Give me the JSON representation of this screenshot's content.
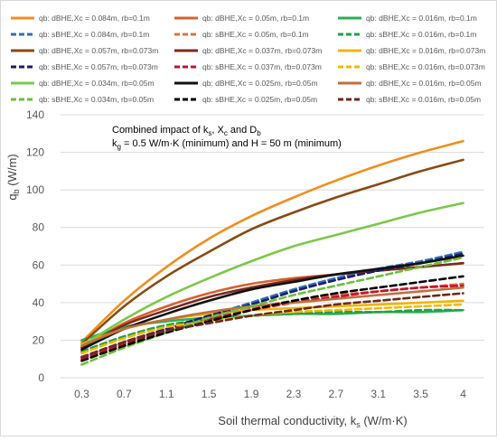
{
  "chart_data": {
    "type": "line",
    "title": "",
    "xlabel": "Soil thermal conductivity, k",
    "xlabel_sub": "s",
    "xlabel_unit": " (W/m·K)",
    "ylabel": "q",
    "ylabel_sub": "b",
    "ylabel_unit": " (W/m)",
    "categories": [
      "0.3",
      "0.7",
      "1.1",
      "1.5",
      "1.9",
      "2.3",
      "2.7",
      "3.1",
      "3.5",
      "4"
    ],
    "ylim": [
      0,
      140
    ],
    "yticks": [
      "0",
      "20",
      "40",
      "60",
      "80",
      "100",
      "120",
      "140"
    ],
    "grid": true,
    "legend_position": "top",
    "annotation": {
      "line1": "Combined impact of k",
      "line1_sub": "s",
      "line1_b": ", X",
      "line1_b_sub": "c",
      "line1_c": " and D",
      "line1_c_sub": "b",
      "line2": "k",
      "line2_sub": "g",
      "line2_b": " = 0.5 W/m·K (minimum) and H = 50 m (minimum)"
    },
    "series": [
      {
        "name": "qb: dBHE,Xc = 0.084m, rb=0.1m",
        "color": "#F28E1D",
        "dash": false,
        "values": [
          19,
          41,
          59,
          74,
          86,
          96,
          105,
          113,
          120,
          126
        ]
      },
      {
        "name": "qb: dBHE,Xc = 0.05m, rb=0.1m",
        "color": "#D8602D",
        "dash": false,
        "values": [
          16,
          29,
          38,
          45,
          50,
          53,
          55,
          57,
          59,
          61
        ]
      },
      {
        "name": "qb: dBHE,Xc = 0.016m, rb=0.1m",
        "color": "#2EAE56",
        "dash": false,
        "values": [
          20,
          27,
          30,
          32,
          33,
          34,
          34,
          35,
          35,
          36
        ]
      },
      {
        "name": "qb: sBHE,Xc = 0.084m, rb=0.1m",
        "color": "#2F6FB8",
        "dash": true,
        "values": [
          11,
          19,
          26,
          33,
          40,
          47,
          53,
          58,
          62,
          67
        ]
      },
      {
        "name": "qb: sBHE,Xc = 0.05m, rb=0.1m",
        "color": "#E07040",
        "dash": true,
        "values": [
          10,
          19,
          26,
          32,
          37,
          41,
          44,
          46,
          48,
          50
        ]
      },
      {
        "name": "qb: sBHE,Xc = 0.016m, rb=0.1m",
        "color": "#1FA04A",
        "dash": true,
        "values": [
          14,
          22,
          28,
          31,
          33,
          34,
          35,
          35,
          36,
          36
        ]
      },
      {
        "name": "qb: dBHE,Xc = 0.057m, rb=0.073m",
        "color": "#8A4A12",
        "dash": false,
        "values": [
          18,
          38,
          54,
          67,
          79,
          88,
          96,
          103,
          110,
          116
        ]
      },
      {
        "name": "qb: dBHE,Xc = 0.037m, rb=0.073m",
        "color": "#7A2A1E",
        "dash": false,
        "values": [
          16,
          28,
          36,
          43,
          48,
          52,
          55,
          57,
          59,
          61
        ]
      },
      {
        "name": "qb: dBHE,Xc = 0.016m, rb=0.073m",
        "color": "#F2B400",
        "dash": false,
        "values": [
          18,
          26,
          31,
          34,
          36,
          37,
          38,
          39,
          40,
          41
        ]
      },
      {
        "name": "qb: sBHE,Xc = 0.057m, rb=0.073m",
        "color": "#1C1C6E",
        "dash": true,
        "values": [
          11,
          19,
          26,
          33,
          39,
          46,
          52,
          57,
          61,
          66
        ]
      },
      {
        "name": "qb: sBHE,Xc = 0.037m, rb=0.073m",
        "color": "#C8102E",
        "dash": true,
        "values": [
          10,
          18,
          25,
          31,
          36,
          40,
          43,
          46,
          48,
          49
        ]
      },
      {
        "name": "qb: sBHE,Xc = 0.016m, rb=0.073m",
        "color": "#F6B800",
        "dash": true,
        "values": [
          13,
          21,
          27,
          30,
          33,
          35,
          36,
          37,
          38,
          39
        ]
      },
      {
        "name": "qb: dBHE,Xc = 0.034m, rb=0.05m",
        "color": "#7CC84A",
        "dash": false,
        "values": [
          17,
          31,
          43,
          53,
          62,
          70,
          76,
          82,
          88,
          93
        ]
      },
      {
        "name": "qb: dBHE,Xc = 0.025m, rb=0.05m",
        "color": "#111111",
        "dash": false,
        "values": [
          15,
          26,
          34,
          41,
          47,
          51,
          55,
          58,
          61,
          65
        ]
      },
      {
        "name": "qb: dBHE,Xc = 0.016m, rb=0.05m",
        "color": "#C0703C",
        "dash": false,
        "values": [
          17,
          26,
          31,
          35,
          38,
          40,
          42,
          44,
          46,
          48
        ]
      },
      {
        "name": "qb: sBHE,Xc = 0.034m, rb=0.05m",
        "color": "#6CBF3C",
        "dash": true,
        "values": [
          7,
          16,
          24,
          32,
          38,
          44,
          49,
          54,
          59,
          64
        ]
      },
      {
        "name": "qb: sBHE,Xc = 0.025m, rb=0.05m",
        "color": "#000000",
        "dash": true,
        "values": [
          9,
          17,
          24,
          30,
          36,
          41,
          45,
          48,
          51,
          54
        ]
      },
      {
        "name": "qb: sBHE,Xc = 0.016m, rb=0.05m",
        "color": "#6B2A1E",
        "dash": true,
        "values": [
          11,
          19,
          25,
          29,
          33,
          36,
          39,
          41,
          43,
          45
        ]
      }
    ]
  }
}
